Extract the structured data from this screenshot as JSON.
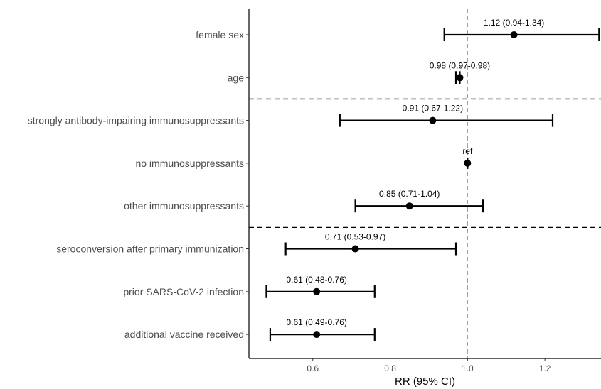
{
  "chart_data": {
    "type": "forest",
    "xlabel": "RR (95% CI)",
    "xlim": [
      0.435,
      1.345
    ],
    "x_ticks": [
      0.6,
      0.8,
      1.0,
      1.2
    ],
    "x_tick_labels": [
      "0.6",
      "0.8",
      "1.0",
      "1.2"
    ],
    "reference_line": 1.0,
    "group_separators_after_rows": [
      2,
      5
    ],
    "rows": [
      {
        "label": "female sex",
        "estimate": 1.12,
        "lower": 0.94,
        "upper": 1.34,
        "text": "1.12 (0.94-1.34)"
      },
      {
        "label": "age",
        "estimate": 0.98,
        "lower": 0.97,
        "upper": 0.98,
        "text": "0.98 (0.97-0.98)"
      },
      {
        "label": "strongly antibody-impairing immunosuppressants",
        "estimate": 0.91,
        "lower": 0.67,
        "upper": 1.22,
        "text": "0.91 (0.67-1.22)"
      },
      {
        "label": "no immunosuppressants",
        "estimate": 1.0,
        "lower": 1.0,
        "upper": 1.0,
        "text": "ref"
      },
      {
        "label": "other immunosuppressants",
        "estimate": 0.85,
        "lower": 0.71,
        "upper": 1.04,
        "text": "0.85 (0.71-1.04)"
      },
      {
        "label": "seroconversion after primary immunization",
        "estimate": 0.71,
        "lower": 0.53,
        "upper": 0.97,
        "text": "0.71 (0.53-0.97)"
      },
      {
        "label": "prior SARS-CoV-2 infection",
        "estimate": 0.61,
        "lower": 0.48,
        "upper": 0.76,
        "text": "0.61 (0.48-0.76)"
      },
      {
        "label": "additional vaccine received",
        "estimate": 0.61,
        "lower": 0.49,
        "upper": 0.76,
        "text": "0.61 (0.49-0.76)"
      }
    ]
  }
}
